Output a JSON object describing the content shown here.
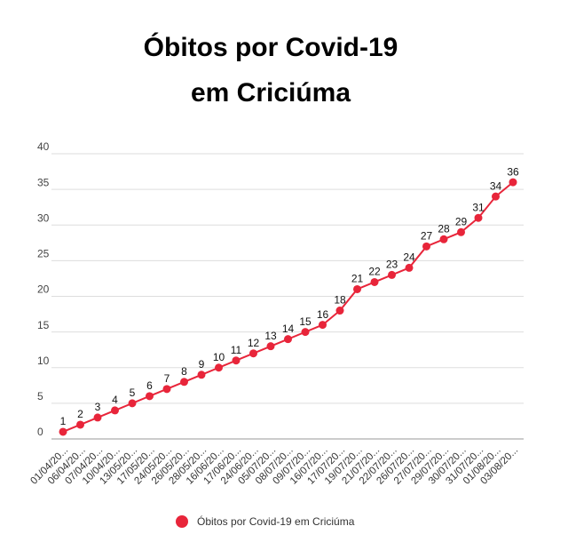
{
  "chart_data": {
    "type": "line",
    "title": [
      "Óbitos por Covid-19",
      "em Criciúma"
    ],
    "categories": [
      "01/04/20...",
      "06/04/20...",
      "07/04/20...",
      "10/04/20...",
      "13/05/20...",
      "17/05/20...",
      "24/05/20...",
      "26/05/20...",
      "28/05/20...",
      "16/06/20...",
      "17/06/20...",
      "24/06/20...",
      "05/07/20...",
      "08/07/20...",
      "09/07/20...",
      "16/07/20...",
      "17/07/20...",
      "19/07/20...",
      "21/07/20...",
      "22/07/20...",
      "26/07/20...",
      "27/07/20...",
      "29/07/20...",
      "30/07/20...",
      "31/07/20...",
      "01/08/20...",
      "03/08/20..."
    ],
    "series": [
      {
        "name": "Óbitos por Covid-19 em Criciúma",
        "color": "#e8253a",
        "values": [
          1,
          2,
          3,
          4,
          5,
          6,
          7,
          8,
          9,
          10,
          11,
          12,
          13,
          14,
          15,
          16,
          18,
          21,
          22,
          23,
          24,
          27,
          28,
          29,
          31,
          34,
          36
        ]
      }
    ],
    "ylim": [
      0,
      40
    ],
    "yticks": [
      0,
      5,
      10,
      15,
      20,
      25,
      30,
      35,
      40
    ],
    "grid": true,
    "legend": "bottom"
  }
}
